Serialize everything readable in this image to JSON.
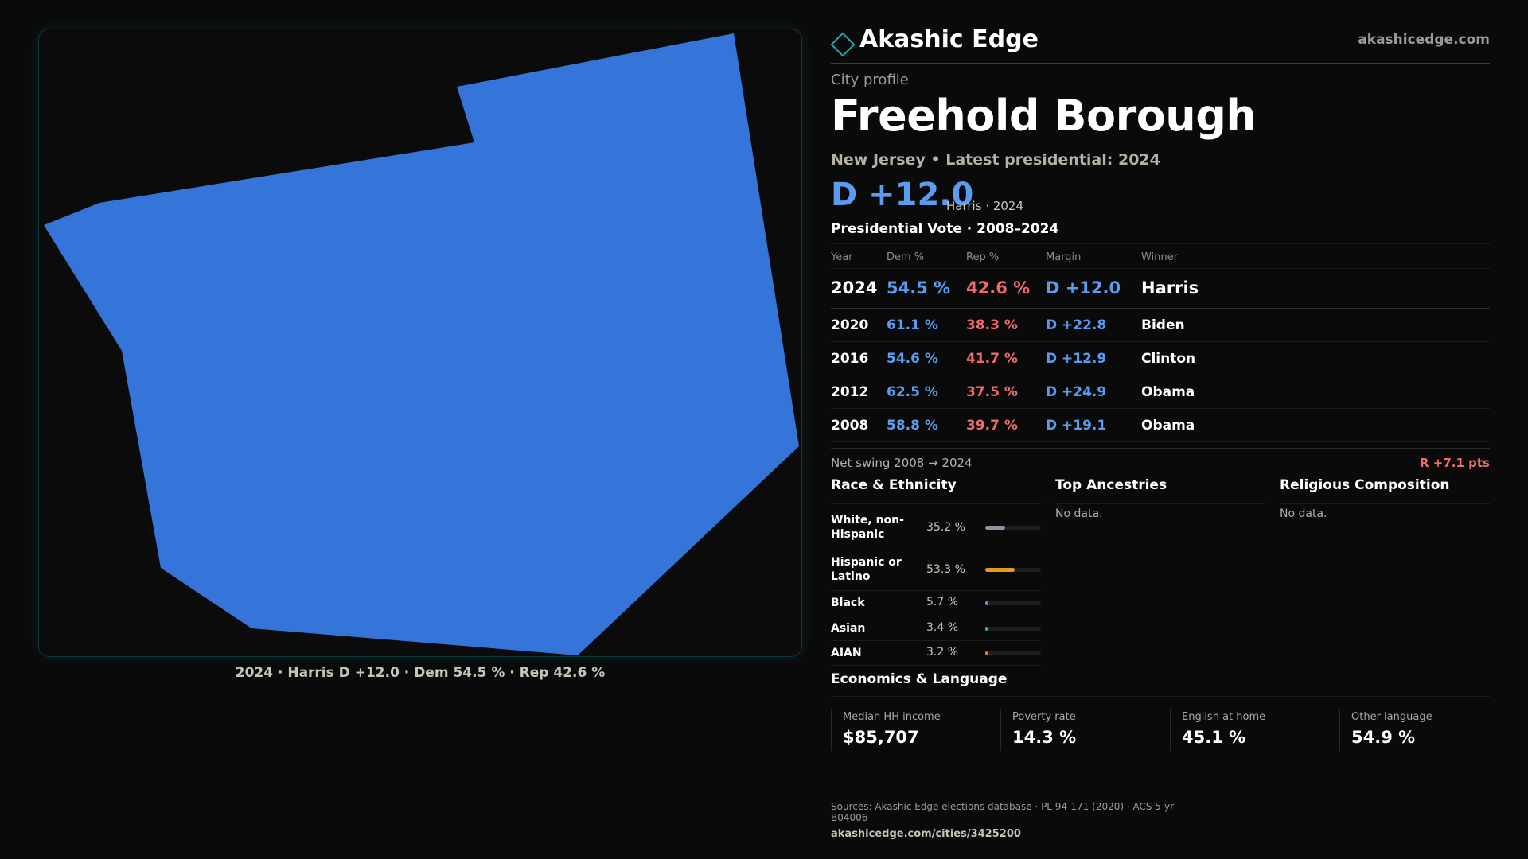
{
  "brand": {
    "name": "Akashic Edge",
    "url": "akashicedge.com"
  },
  "map": {
    "fill_color": "#3574d9",
    "caption": "2024 · Harris D +12.0 · Dem 54.5 % · Rep 42.6 %"
  },
  "profile": {
    "kicker": "City profile",
    "city": "Freehold Borough",
    "subtitle": "New Jersey • Latest presidential: 2024",
    "headline_margin": "D +12.0",
    "headline_sub": "Harris · 2024"
  },
  "vote": {
    "title": "Presidential Vote · 2008–2024",
    "columns": [
      "Year",
      "Dem %",
      "Rep %",
      "Margin",
      "Winner"
    ],
    "rows": [
      {
        "year": "2024",
        "dem": "54.5 %",
        "rep": "42.6 %",
        "margin": "D +12.0",
        "winner": "Harris"
      },
      {
        "year": "2020",
        "dem": "61.1 %",
        "rep": "38.3 %",
        "margin": "D +22.8",
        "winner": "Biden"
      },
      {
        "year": "2016",
        "dem": "54.6 %",
        "rep": "41.7 %",
        "margin": "D +12.9",
        "winner": "Clinton"
      },
      {
        "year": "2012",
        "dem": "62.5 %",
        "rep": "37.5 %",
        "margin": "D +24.9",
        "winner": "Obama"
      },
      {
        "year": "2008",
        "dem": "58.8 %",
        "rep": "39.7 %",
        "margin": "D +19.1",
        "winner": "Obama"
      }
    ],
    "swing_label": "Net swing 2008 → 2024",
    "swing_value": "R +7.1 pts"
  },
  "race": {
    "title": "Race & Ethnicity",
    "items": [
      {
        "label": "White, non-Hispanic",
        "pct": "35.2 %",
        "value": 35.2,
        "color": "#8a96a8"
      },
      {
        "label": "Hispanic or Latino",
        "pct": "53.3 %",
        "value": 53.3,
        "color": "#e39a1e"
      },
      {
        "label": "Black",
        "pct": "5.7 %",
        "value": 5.7,
        "color": "#8f7ee0"
      },
      {
        "label": "Asian",
        "pct": "3.4 %",
        "value": 3.4,
        "color": "#2fbf8f"
      },
      {
        "label": "AIAN",
        "pct": "3.2 %",
        "value": 3.2,
        "color": "#e0763a"
      }
    ]
  },
  "ancestries": {
    "title": "Top Ancestries",
    "empty": "No data."
  },
  "religion": {
    "title": "Religious Composition",
    "empty": "No data."
  },
  "economics": {
    "title": "Economics & Language",
    "cards": [
      {
        "label": "Median HH income",
        "value": "$85,707"
      },
      {
        "label": "Poverty rate",
        "value": "14.3 %"
      },
      {
        "label": "English at home",
        "value": "45.1 %"
      },
      {
        "label": "Other language",
        "value": "54.9 %"
      }
    ]
  },
  "sources": {
    "line": "Sources: Akashic Edge elections database · PL 94-171 (2020) · ACS 5-yr B04006",
    "url": "akashicedge.com/cities/3425200"
  }
}
